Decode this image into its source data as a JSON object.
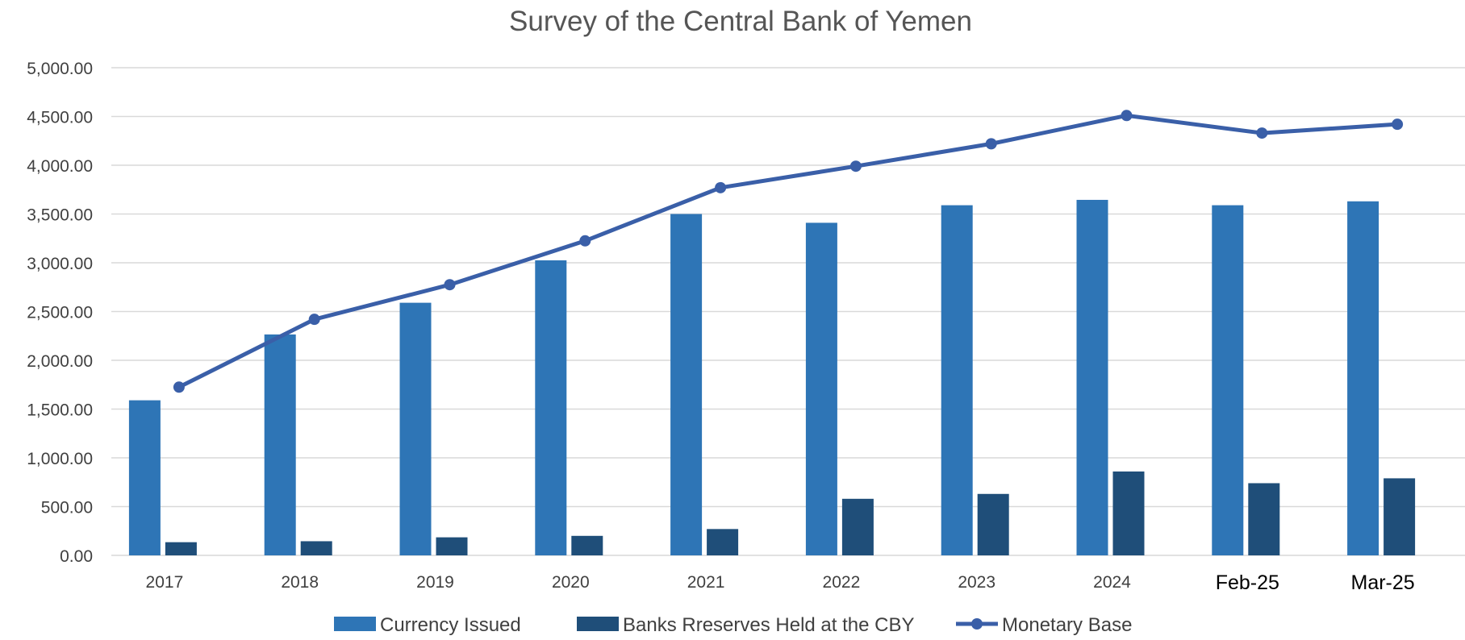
{
  "chart_data": {
    "type": "bar",
    "title": "Survey of the Central Bank of Yemen",
    "categories": [
      "2017",
      "2018",
      "2019",
      "2020",
      "2021",
      "2022",
      "2023",
      "2024",
      "Feb-25",
      "Mar-25"
    ],
    "series": [
      {
        "name": "Currency Issued",
        "kind": "bar",
        "color": "#2E75B6",
        "values": [
          1590,
          2265,
          2590,
          3025,
          3500,
          3410,
          3590,
          3645,
          3590,
          3630
        ]
      },
      {
        "name": "Banks Rreserves Held at the CBY",
        "kind": "bar",
        "color": "#1F4E79",
        "values": [
          135,
          145,
          185,
          200,
          270,
          580,
          630,
          860,
          740,
          790
        ]
      },
      {
        "name": "Monetary Base",
        "kind": "line",
        "color": "#3A5FA8",
        "values": [
          1725,
          2420,
          2775,
          3225,
          3770,
          3990,
          4220,
          4510,
          4330,
          4420
        ]
      }
    ],
    "y_ticks": [
      "0.00",
      "500.00",
      "1,000.00",
      "1,500.00",
      "2,000.00",
      "2,500.00",
      "3,000.00",
      "3,500.00",
      "4,000.00",
      "4,500.00",
      "5,000.00"
    ],
    "ylim": [
      0,
      5000
    ],
    "xlabel": "",
    "ylabel": "",
    "grid": true,
    "legend_position": "bottom"
  }
}
